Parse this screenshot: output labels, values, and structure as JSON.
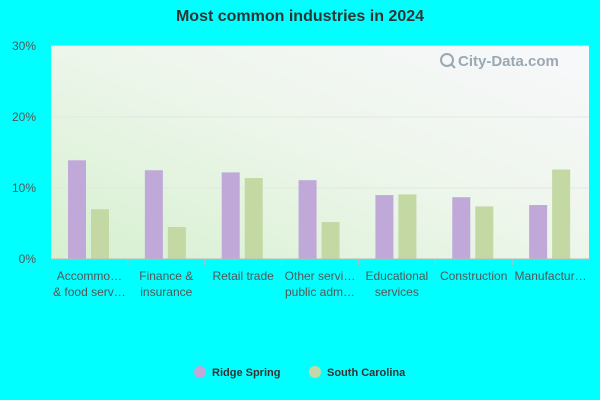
{
  "colors": {
    "background": "#00ffff",
    "series1": "#c0a8d8",
    "series2": "#c4d8a4"
  },
  "watermark": "City-Data.com",
  "chart_data": {
    "type": "bar",
    "title": "Most common industries in 2024",
    "xlabel": "",
    "ylabel": "",
    "ylim": [
      0,
      30
    ],
    "yticks": [
      "0%",
      "10%",
      "20%",
      "30%"
    ],
    "grid": true,
    "legend_position": "bottom",
    "categories": [
      [
        "Accommo…",
        "& food serv…"
      ],
      [
        "Finance &",
        "insurance"
      ],
      [
        "Retail trade"
      ],
      [
        "Other servi…",
        "public adm…"
      ],
      [
        "Educational",
        "services"
      ],
      [
        "Construction"
      ],
      [
        "Manufactur…"
      ]
    ],
    "series": [
      {
        "name": "Ridge Spring",
        "values": [
          13.9,
          12.5,
          12.2,
          11.1,
          9.0,
          8.7,
          7.6
        ]
      },
      {
        "name": "South Carolina",
        "values": [
          7.0,
          4.5,
          11.4,
          5.2,
          9.1,
          7.4,
          12.6
        ]
      }
    ]
  }
}
